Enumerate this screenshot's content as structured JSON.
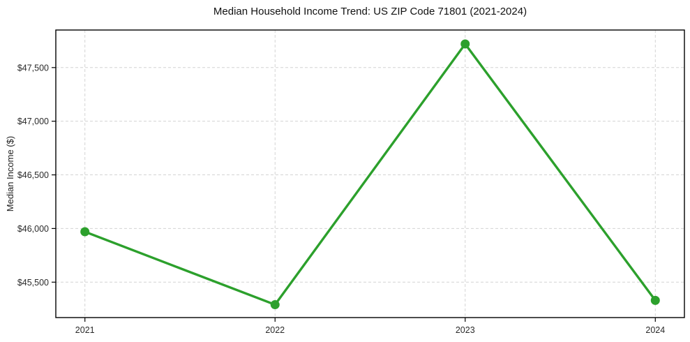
{
  "chart_data": {
    "type": "line",
    "title": "Median Household Income Trend: US ZIP Code 71801 (2021-2024)",
    "xlabel": "",
    "ylabel": "Median Income ($)",
    "categories": [
      "2021",
      "2022",
      "2023",
      "2024"
    ],
    "series": [
      {
        "name": "Median Household Income",
        "values": [
          45970,
          45290,
          47720,
          45330
        ]
      }
    ],
    "yticks": [
      45500,
      46000,
      46500,
      47000,
      47500
    ],
    "ytick_labels": [
      "$45,500",
      "$46,000",
      "$46,500",
      "$47,000",
      "$47,500"
    ],
    "ylim": [
      45170,
      47850
    ],
    "grid": "on",
    "grid_style": "dashed",
    "legend_position": "none",
    "line_color": "#2ca02c",
    "marker": "circle",
    "grid_color": "#d3d3d3",
    "spine_color": "#000000",
    "tick_color": "#2a2a2a"
  }
}
